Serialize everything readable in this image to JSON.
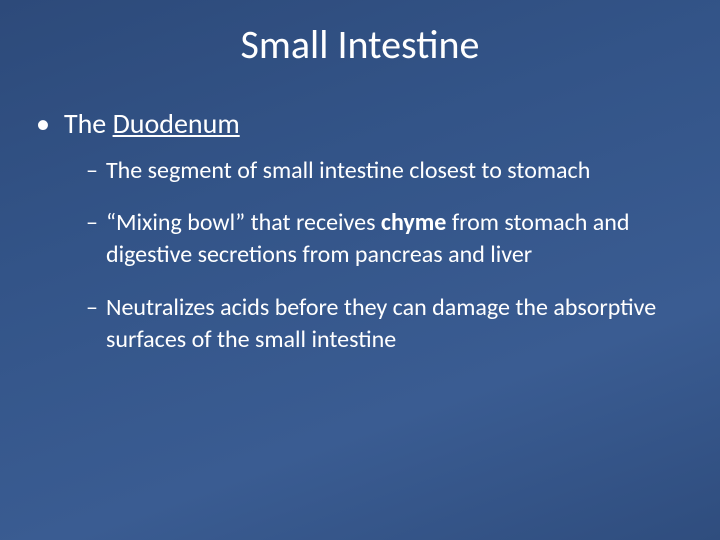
{
  "slide": {
    "background_gradient": [
      "#2d4a7a",
      "#335488",
      "#3a5c92",
      "#2f4d7e"
    ],
    "text_color": "#ffffff",
    "title": {
      "text": "Small Intestine",
      "fontsize": 40,
      "font_weight": 400,
      "align": "center"
    },
    "level1": {
      "bullet_glyph": "•",
      "fontsize": 28,
      "item": {
        "prefix": "The ",
        "underlined": "Duodenum"
      }
    },
    "level2": {
      "dash_glyph": "–",
      "fontsize": 24,
      "items": [
        {
          "plain": "The segment of small intestine closest to stomach"
        },
        {
          "open_quote": "“",
          "close_quote": "”",
          "quoted": "Mixing bowl",
          "mid1": " that receives ",
          "bold": "chyme",
          "mid2": " from stomach and digestive secretions from pancreas and liver"
        },
        {
          "plain": "Neutralizes acids before they can damage the absorptive surfaces of the small intestine"
        }
      ]
    }
  }
}
